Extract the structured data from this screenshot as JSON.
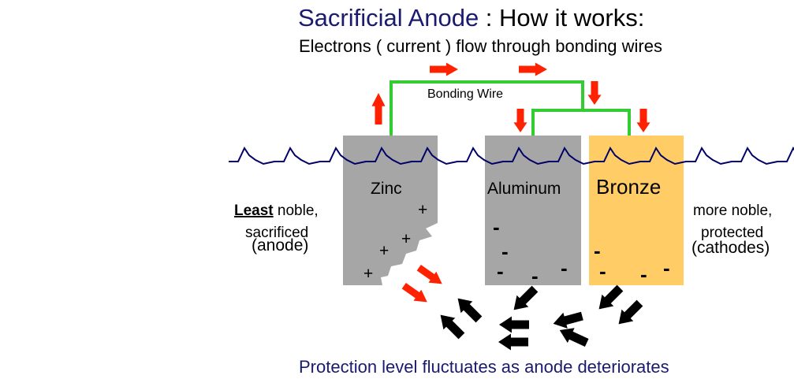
{
  "title": {
    "part1": "Sacrificial Anode",
    "separator": " : ",
    "part2": "How it works:"
  },
  "subtitle": "Electrons ( current ) flow through bonding wires",
  "bonding_wire_label": "Bonding Wire",
  "left_side": {
    "least": "Least",
    "noble": " noble,",
    "sacrificed": "sacrificed",
    "role": "(anode)"
  },
  "right_side": {
    "line1": "more noble,",
    "line2": "protected",
    "role": "(cathodes)"
  },
  "metals": {
    "zinc": "Zinc",
    "aluminum": "Aluminum",
    "bronze": "Bronze"
  },
  "charges": {
    "plus": "+",
    "minus": "-"
  },
  "footer": "Protection level fluctuates as anode deteriorates",
  "colors": {
    "title": "#1a1a6e",
    "text": "#000000",
    "wire": "#33cc33",
    "arrow_red": "#ff2200",
    "arrow_black": "#000000",
    "metal_gray": "#a6a6a6",
    "bronze": "#ffcc66",
    "water_line": "#000066"
  },
  "icons": {
    "current_arrow": "red-arrow-icon",
    "ion_arrow": "black-arrow-icon"
  }
}
